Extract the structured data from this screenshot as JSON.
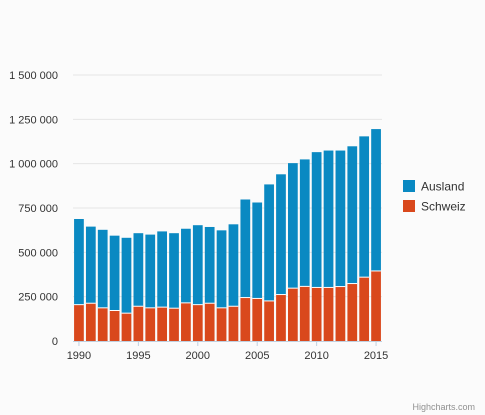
{
  "chart_data": {
    "type": "bar",
    "stacked": true,
    "title": "",
    "xlabel": "",
    "ylabel": "",
    "categories": [
      1990,
      1991,
      1992,
      1993,
      1994,
      1995,
      1996,
      1997,
      1998,
      1999,
      2000,
      2001,
      2002,
      2003,
      2004,
      2005,
      2006,
      2007,
      2008,
      2009,
      2010,
      2011,
      2012,
      2013,
      2014,
      2015
    ],
    "x_tick_labels": [
      "1990",
      "1995",
      "2000",
      "2005",
      "2010",
      "2015"
    ],
    "x_tick_values": [
      1990,
      1995,
      2000,
      2005,
      2010,
      2015
    ],
    "y_tick_labels": [
      "0",
      "250 000",
      "500 000",
      "750 000",
      "1 000 000",
      "1 250 000",
      "1 500 000"
    ],
    "y_tick_values": [
      0,
      250000,
      500000,
      750000,
      1000000,
      1250000,
      1500000
    ],
    "ylim": [
      0,
      1500000
    ],
    "grid": true,
    "legend_position": "right",
    "series": [
      {
        "name": "Schweiz",
        "color": "#d9481c",
        "values": [
          205000,
          213000,
          187000,
          172000,
          157000,
          196000,
          187000,
          191000,
          185000,
          215000,
          205000,
          213000,
          187000,
          196000,
          245000,
          240000,
          226000,
          262000,
          298000,
          308000,
          302000,
          302000,
          307000,
          324000,
          360000,
          395000
        ]
      },
      {
        "name": "Ausland",
        "color": "#0a89c2",
        "values": [
          483000,
          432000,
          440000,
          422000,
          425000,
          412000,
          413000,
          427000,
          423000,
          418000,
          448000,
          430000,
          437000,
          462000,
          553000,
          541000,
          657000,
          678000,
          705000,
          716000,
          763000,
          772000,
          767000,
          774000,
          794000,
          800000
        ]
      }
    ],
    "legend": [
      "Ausland",
      "Schweiz"
    ]
  },
  "credits": "Highcharts.com"
}
